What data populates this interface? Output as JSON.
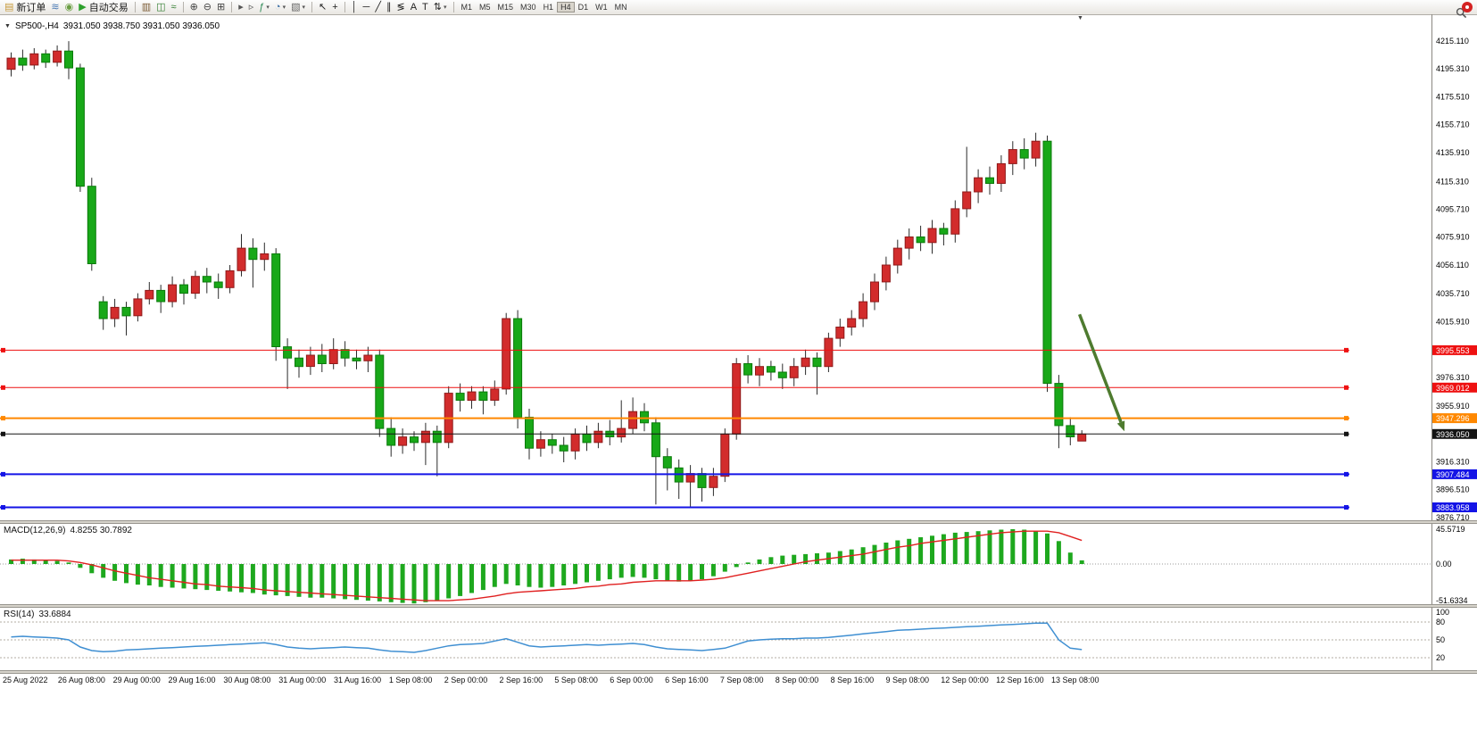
{
  "toolbar": {
    "caret_glyph": "▾",
    "items": [
      {
        "name": "new-order-button",
        "icon": "new-order-icon",
        "glyph": "▤",
        "glyph_color": "#c89b3c",
        "label": "新订单"
      },
      {
        "name": "depth-of-market-button",
        "icon": "depth-of-market-icon",
        "glyph": "≋",
        "glyph_color": "#4a7ab5"
      },
      {
        "name": "signals-button",
        "icon": "signals-icon",
        "glyph": "◉",
        "glyph_color": "#6a9e43"
      },
      {
        "name": "auto-trading-button",
        "icon": "play-icon",
        "glyph": "▶",
        "glyph_color": "#2ca02c",
        "label": "自动交易"
      },
      {
        "sep": true
      },
      {
        "name": "bar-chart-button",
        "icon": "bar-chart-icon",
        "glyph": "▥",
        "glyph_color": "#7a5a33"
      },
      {
        "name": "candlestick-chart-button",
        "icon": "candlestick-chart-icon",
        "glyph": "◫",
        "glyph_color": "#2f7d2f"
      },
      {
        "name": "line-chart-button",
        "icon": "line-chart-icon",
        "glyph": "≈",
        "glyph_color": "#2f7d2f"
      },
      {
        "sep": true
      },
      {
        "name": "zoom-in-button",
        "icon": "zoom-in-icon",
        "glyph": "⊕",
        "glyph_color": "#444444"
      },
      {
        "name": "zoom-out-button",
        "icon": "zoom-out-icon",
        "glyph": "⊖",
        "glyph_color": "#444444"
      },
      {
        "name": "grid-button",
        "icon": "grid-icon",
        "glyph": "⊞",
        "glyph_color": "#444444"
      },
      {
        "sep": true
      },
      {
        "name": "auto-scroll-button",
        "icon": "auto-scroll-icon",
        "glyph": "▸",
        "glyph_color": "#555555"
      },
      {
        "name": "chart-shift-button",
        "icon": "chart-shift-icon",
        "glyph": "▹",
        "glyph_color": "#555555"
      },
      {
        "name": "indicators-button",
        "icon": "add-indicator-icon",
        "glyph": "ƒ",
        "glyph_color": "#2e8b57",
        "dropdown": true
      },
      {
        "name": "periods-button",
        "icon": "clock-icon",
        "glyph": "◔",
        "glyph_color": "#3a6ea5",
        "dropdown": true
      },
      {
        "name": "templates-button",
        "icon": "template-icon",
        "glyph": "▧",
        "glyph_color": "#666666",
        "dropdown": true
      },
      {
        "sep": true
      },
      {
        "name": "cursor-button",
        "icon": "cursor-icon",
        "glyph": "↖",
        "glyph_color": "#222222"
      },
      {
        "name": "crosshair-button",
        "icon": "crosshair-icon",
        "glyph": "+",
        "glyph_color": "#222222"
      },
      {
        "sep": true
      },
      {
        "name": "vertical-line-button",
        "icon": "vertical-line-icon",
        "glyph": "│",
        "glyph_color": "#222222"
      },
      {
        "name": "horizontal-line-button",
        "icon": "horizontal-line-icon",
        "glyph": "─",
        "glyph_color": "#222222"
      },
      {
        "name": "trendline-button",
        "icon": "trendline-icon",
        "glyph": "╱",
        "glyph_color": "#222222"
      },
      {
        "name": "equidistant-channel-button",
        "icon": "channel-icon",
        "glyph": "∥",
        "glyph_color": "#222222"
      },
      {
        "name": "fibonacci-button",
        "icon": "fibonacci-icon",
        "glyph": "≶",
        "glyph_color": "#222222"
      },
      {
        "name": "text-button",
        "icon": "text-icon",
        "glyph": "A",
        "glyph_color": "#222222"
      },
      {
        "name": "label-button",
        "icon": "label-icon",
        "glyph": "T",
        "glyph_color": "#222222"
      },
      {
        "name": "arrows-button",
        "icon": "arrows-icon",
        "glyph": "⇅",
        "glyph_color": "#222222",
        "dropdown": true
      },
      {
        "sep": true
      },
      {
        "tf": "M1"
      },
      {
        "tf": "M5"
      },
      {
        "tf": "M15"
      },
      {
        "tf": "M30"
      },
      {
        "tf": "H1"
      },
      {
        "tf": "H4",
        "active": true
      },
      {
        "tf": "D1"
      },
      {
        "tf": "W1"
      },
      {
        "tf": "MN"
      }
    ],
    "right_items": [
      {
        "name": "search-button",
        "icon": "search-icon",
        "type": "search"
      },
      {
        "name": "community-button",
        "icon": "account-badge-icon",
        "type": "badge",
        "color": "#d42222"
      }
    ]
  },
  "chart_header": {
    "dropdown_glyph": "▼",
    "symbol": "SP500-,H4",
    "ohlc": "3931.050 3938.750 3931.050 3936.050"
  },
  "shift_marker_glyph": "▼",
  "chart_data": {
    "type": "candlestick",
    "symbol": "SP500-",
    "timeframe": "H4",
    "colors": {
      "up": "#d22c2c",
      "up_border": "#8f1a1a",
      "down": "#18a818",
      "down_border": "#0a7a0a",
      "wick": "#2b2b2b"
    },
    "y_axis_labels": [
      "4215.110",
      "4195.310",
      "4175.510",
      "4155.710",
      "4135.910",
      "4115.310",
      "4095.710",
      "4075.910",
      "4056.110",
      "4035.710",
      "4015.910",
      "3976.310",
      "3955.910",
      "3916.310",
      "3896.510",
      "3876.710"
    ],
    "x_labels": [
      "25 Aug 2022",
      "26 Aug 08:00",
      "29 Aug 00:00",
      "29 Aug 16:00",
      "30 Aug 08:00",
      "31 Aug 00:00",
      "31 Aug 16:00",
      "1 Sep 08:00",
      "2 Sep 00:00",
      "2 Sep 16:00",
      "5 Sep 08:00",
      "6 Sep 00:00",
      "6 Sep 16:00",
      "7 Sep 08:00",
      "8 Sep 00:00",
      "8 Sep 16:00",
      "9 Sep 08:00",
      "12 Sep 00:00",
      "12 Sep 16:00",
      "13 Sep 08:00"
    ],
    "hlines": [
      {
        "price": 3995.553,
        "label": "3995.553",
        "color": "#ee1111",
        "width": 1
      },
      {
        "price": 3969.012,
        "label": "3969.012",
        "color": "#ee1111",
        "width": 1
      },
      {
        "price": 3947.296,
        "label": "3947.296",
        "color": "#ff8800",
        "width": 2
      },
      {
        "price": 3936.05,
        "label": "3936.050",
        "color": "#141414",
        "width": 1
      },
      {
        "price": 3907.484,
        "label": "3907.484",
        "color": "#1414e6",
        "width": 2
      },
      {
        "price": 3883.958,
        "label": "3883.958",
        "color": "#1414e6",
        "width": 2
      }
    ],
    "arrow": {
      "from_bar": 92.8,
      "from_price": 4021,
      "to_bar": 96.7,
      "to_price": 3938,
      "color": "#4e7b2f"
    },
    "candles": [
      [
        4195,
        4207,
        4190,
        4203
      ],
      [
        4203,
        4209,
        4194,
        4198
      ],
      [
        4198,
        4210,
        4195,
        4206
      ],
      [
        4206,
        4209,
        4196,
        4200
      ],
      [
        4200,
        4212,
        4197,
        4208
      ],
      [
        4208,
        4215,
        4188,
        4196
      ],
      [
        4196,
        4199,
        4108,
        4112
      ],
      [
        4112,
        4118,
        4052,
        4057
      ],
      [
        4030,
        4034,
        4010,
        4018
      ],
      [
        4018,
        4032,
        4012,
        4026
      ],
      [
        4026,
        4030,
        4006,
        4020
      ],
      [
        4020,
        4036,
        4016,
        4032
      ],
      [
        4032,
        4044,
        4028,
        4038
      ],
      [
        4038,
        4042,
        4022,
        4030
      ],
      [
        4030,
        4048,
        4026,
        4042
      ],
      [
        4042,
        4046,
        4028,
        4036
      ],
      [
        4036,
        4052,
        4032,
        4048
      ],
      [
        4048,
        4054,
        4036,
        4044
      ],
      [
        4044,
        4050,
        4032,
        4040
      ],
      [
        4040,
        4056,
        4036,
        4052
      ],
      [
        4052,
        4078,
        4048,
        4068
      ],
      [
        4068,
        4075,
        4040,
        4060
      ],
      [
        4060,
        4072,
        4052,
        4064
      ],
      [
        4064,
        4068,
        3988,
        3998
      ],
      [
        3998,
        4004,
        3968,
        3990
      ],
      [
        3990,
        3996,
        3976,
        3984
      ],
      [
        3984,
        3998,
        3978,
        3992
      ],
      [
        3992,
        4000,
        3980,
        3986
      ],
      [
        3986,
        4004,
        3982,
        3996
      ],
      [
        3996,
        4002,
        3984,
        3990
      ],
      [
        3990,
        3996,
        3982,
        3988
      ],
      [
        3988,
        3998,
        3980,
        3992
      ],
      [
        3992,
        3996,
        3934,
        3940
      ],
      [
        3940,
        3948,
        3920,
        3928
      ],
      [
        3928,
        3940,
        3922,
        3934
      ],
      [
        3934,
        3938,
        3924,
        3930
      ],
      [
        3930,
        3944,
        3914,
        3938
      ],
      [
        3938,
        3942,
        3906,
        3930
      ],
      [
        3930,
        3970,
        3926,
        3965
      ],
      [
        3965,
        3972,
        3952,
        3960
      ],
      [
        3960,
        3970,
        3954,
        3966
      ],
      [
        3966,
        3970,
        3950,
        3960
      ],
      [
        3960,
        3974,
        3956,
        3968
      ],
      [
        3968,
        4022,
        3964,
        4018
      ],
      [
        4018,
        4024,
        3940,
        3948
      ],
      [
        3948,
        3954,
        3918,
        3926
      ],
      [
        3926,
        3938,
        3920,
        3932
      ],
      [
        3932,
        3936,
        3922,
        3928
      ],
      [
        3928,
        3934,
        3916,
        3924
      ],
      [
        3924,
        3940,
        3918,
        3936
      ],
      [
        3936,
        3942,
        3924,
        3930
      ],
      [
        3930,
        3944,
        3926,
        3938
      ],
      [
        3938,
        3946,
        3928,
        3934
      ],
      [
        3934,
        3960,
        3930,
        3940
      ],
      [
        3940,
        3962,
        3936,
        3952
      ],
      [
        3952,
        3958,
        3938,
        3944
      ],
      [
        3944,
        3948,
        3886,
        3920
      ],
      [
        3920,
        3926,
        3896,
        3912
      ],
      [
        3912,
        3918,
        3890,
        3902
      ],
      [
        3902,
        3914,
        3884,
        3908
      ],
      [
        3908,
        3912,
        3888,
        3898
      ],
      [
        3898,
        3912,
        3892,
        3906
      ],
      [
        3906,
        3940,
        3902,
        3936
      ],
      [
        3936,
        3990,
        3932,
        3986
      ],
      [
        3986,
        3992,
        3972,
        3978
      ],
      [
        3978,
        3990,
        3970,
        3984
      ],
      [
        3984,
        3988,
        3974,
        3980
      ],
      [
        3980,
        3986,
        3968,
        3976
      ],
      [
        3976,
        3990,
        3970,
        3984
      ],
      [
        3984,
        3996,
        3978,
        3990
      ],
      [
        3990,
        3994,
        3964,
        3984
      ],
      [
        3984,
        4008,
        3980,
        4004
      ],
      [
        4004,
        4018,
        3998,
        4012
      ],
      [
        4012,
        4024,
        4006,
        4018
      ],
      [
        4018,
        4036,
        4012,
        4030
      ],
      [
        4030,
        4050,
        4024,
        4044
      ],
      [
        4044,
        4062,
        4038,
        4056
      ],
      [
        4056,
        4074,
        4050,
        4068
      ],
      [
        4068,
        4082,
        4060,
        4076
      ],
      [
        4076,
        4084,
        4066,
        4072
      ],
      [
        4072,
        4088,
        4064,
        4082
      ],
      [
        4082,
        4086,
        4070,
        4078
      ],
      [
        4078,
        4102,
        4072,
        4096
      ],
      [
        4096,
        4140,
        4090,
        4108
      ],
      [
        4108,
        4124,
        4100,
        4118
      ],
      [
        4118,
        4126,
        4106,
        4114
      ],
      [
        4114,
        4134,
        4108,
        4128
      ],
      [
        4128,
        4144,
        4120,
        4138
      ],
      [
        4138,
        4146,
        4124,
        4132
      ],
      [
        4132,
        4150,
        4126,
        4144
      ],
      [
        4144,
        4148,
        3966,
        3972
      ],
      [
        3972,
        3978,
        3926,
        3942
      ],
      [
        3942,
        3948,
        3928,
        3934
      ],
      [
        3931.05,
        3938.75,
        3931.05,
        3936.05
      ]
    ],
    "indicators": [
      {
        "type": "macd",
        "label": "MACD(12,26,9)",
        "values_text": "4.8255 30.7892",
        "axis_labels": [
          "45.5719",
          "0.00",
          "-51.6334"
        ],
        "histogram_color": "#1ea81e",
        "signal_color": "#e02020",
        "main": [
          6,
          7,
          6,
          5,
          4,
          2,
          -5,
          -12,
          -18,
          -22,
          -25,
          -27,
          -28,
          -30,
          -31,
          -32,
          -33,
          -34,
          -35,
          -36,
          -37,
          -38,
          -40,
          -41,
          -42,
          -43,
          -44,
          -44,
          -45,
          -46,
          -47,
          -48,
          -49,
          -50,
          -51,
          -51.63,
          -50,
          -48,
          -45,
          -42,
          -38,
          -34,
          -30,
          -26,
          -28,
          -30,
          -31,
          -30,
          -28,
          -26,
          -24,
          -22,
          -20,
          -18,
          -17,
          -18,
          -20,
          -22,
          -23,
          -22,
          -20,
          -16,
          -10,
          -4,
          2,
          6,
          9,
          11,
          12,
          13,
          14,
          15,
          17,
          19,
          22,
          25,
          28,
          31,
          33,
          35,
          37,
          39,
          41,
          42,
          43,
          44,
          45,
          45.57,
          45,
          43,
          40,
          30,
          15,
          4.83
        ],
        "signal": [
          5,
          5,
          5,
          5,
          5,
          4,
          2,
          -1,
          -5,
          -9,
          -12,
          -15,
          -18,
          -20,
          -22,
          -24,
          -26,
          -27,
          -29,
          -30,
          -31,
          -32,
          -34,
          -35,
          -36,
          -37,
          -38,
          -39,
          -40,
          -41,
          -42,
          -43,
          -44,
          -45,
          -46,
          -47,
          -48,
          -48,
          -48,
          -47,
          -46,
          -44,
          -42,
          -39,
          -37,
          -36,
          -35,
          -34,
          -33,
          -32,
          -30,
          -29,
          -27,
          -26,
          -24,
          -23,
          -22,
          -22,
          -22,
          -22,
          -21,
          -20,
          -18,
          -15,
          -12,
          -9,
          -6,
          -3,
          0,
          3,
          5,
          7,
          9,
          11,
          13,
          16,
          19,
          22,
          24,
          27,
          29,
          31,
          33,
          35,
          37,
          39,
          41,
          42,
          43,
          43,
          43,
          41,
          36,
          30.79
        ]
      },
      {
        "type": "rsi",
        "label": "RSI(14)",
        "values_text": "33.6884",
        "axis_labels": [
          "100",
          "80",
          "50",
          "20"
        ],
        "levels": [
          80,
          50,
          20
        ],
        "line_color": "#3f8fd2",
        "values": [
          55,
          56,
          55,
          54,
          53,
          50,
          38,
          32,
          30,
          31,
          33,
          34,
          35,
          36,
          37,
          38,
          39,
          40,
          41,
          42,
          43,
          44,
          45,
          42,
          38,
          36,
          35,
          36,
          37,
          38,
          37,
          36,
          33,
          31,
          30,
          29,
          32,
          36,
          40,
          42,
          43,
          44,
          48,
          52,
          46,
          40,
          38,
          39,
          40,
          41,
          42,
          41,
          42,
          43,
          44,
          42,
          38,
          35,
          34,
          33,
          32,
          34,
          36,
          42,
          48,
          50,
          51,
          52,
          52,
          53,
          53,
          54,
          56,
          58,
          60,
          62,
          64,
          66,
          67,
          68,
          69,
          70,
          71,
          72,
          73,
          74,
          75,
          76,
          77,
          78,
          78,
          50,
          36,
          33.69
        ]
      }
    ]
  }
}
